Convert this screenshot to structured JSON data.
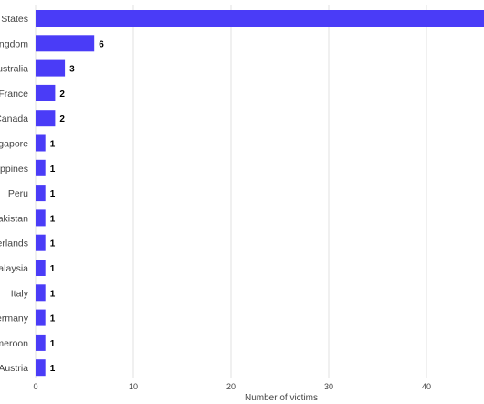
{
  "chart_data": {
    "type": "bar",
    "orientation": "horizontal",
    "title": "",
    "xlabel": "Number of victims",
    "ylabel": "",
    "categories": [
      "United States",
      "United Kingdom",
      "Australia",
      "France",
      "Canada",
      "Singapore",
      "Philippines",
      "Peru",
      "Pakistan",
      "Netherlands",
      "Malaysia",
      "Italy",
      "Germany",
      "Cameroon",
      "Austria"
    ],
    "values": [
      48,
      6,
      3,
      2,
      2,
      1,
      1,
      1,
      1,
      1,
      1,
      1,
      1,
      1,
      1
    ],
    "xticks": [
      0,
      10,
      20,
      30,
      40
    ],
    "xlim": [
      0,
      46
    ],
    "grid": true,
    "bar_color": "#4a3cf7",
    "grid_color": "#e0e0e0"
  }
}
